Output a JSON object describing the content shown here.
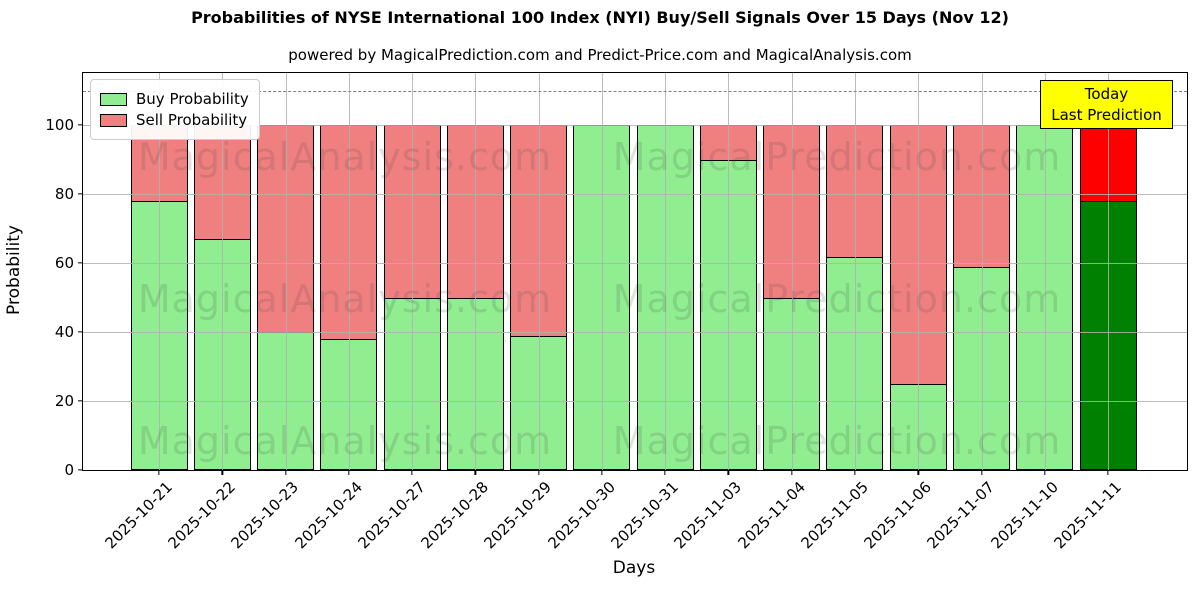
{
  "page": {
    "title": "Probabilities of NYSE International 100 Index (NYI) Buy/Sell Signals Over 15 Days (Nov 12)",
    "subtitle": "powered by MagicalPrediction.com and Predict-Price.com and MagicalAnalysis.com"
  },
  "chart_data": {
    "type": "bar",
    "stacked": true,
    "title": "Probabilities of NYSE International 100 Index (NYI) Buy/Sell Signals Over 15 Days (Nov 12)",
    "subtitle": "powered by MagicalPrediction.com and Predict-Price.com and MagicalAnalysis.com",
    "xlabel": "Days",
    "ylabel": "Probability",
    "ylim": [
      0,
      115
    ],
    "yticks": [
      0,
      20,
      40,
      60,
      80,
      100
    ],
    "grid": true,
    "dashed_threshold_y": 110,
    "categories": [
      "2025-10-21",
      "2025-10-22",
      "2025-10-23",
      "2025-10-24",
      "2025-10-27",
      "2025-10-28",
      "2025-10-29",
      "2025-10-30",
      "2025-10-31",
      "2025-11-03",
      "2025-11-04",
      "2025-11-05",
      "2025-11-06",
      "2025-11-07",
      "2025-11-10",
      "2025-11-11"
    ],
    "series": [
      {
        "name": "Buy Probability",
        "color": "#90ee90",
        "values": [
          78,
          67,
          40,
          38,
          50,
          50,
          39,
          100,
          100,
          90,
          50,
          62,
          25,
          59,
          100,
          78
        ]
      },
      {
        "name": "Sell Probability",
        "color": "#f08080",
        "values": [
          22,
          33,
          60,
          62,
          50,
          50,
          61,
          0,
          0,
          10,
          50,
          38,
          75,
          41,
          0,
          22
        ]
      }
    ],
    "today_bar": {
      "index": 15,
      "buy_color": "#008000",
      "sell_color": "#ff0000"
    },
    "legend": {
      "position": "upper left",
      "entries": [
        {
          "label": "Buy Probability",
          "color": "#90ee90"
        },
        {
          "label": "Sell Probability",
          "color": "#f08080"
        }
      ]
    },
    "annotation": {
      "lines": [
        "Today",
        "Last Prediction"
      ],
      "bg": "#ffff00",
      "border": "#000000"
    },
    "watermarks": {
      "texts": [
        "MagicalAnalysis.com",
        "MagicalPrediction.com"
      ],
      "rows": 3
    }
  }
}
